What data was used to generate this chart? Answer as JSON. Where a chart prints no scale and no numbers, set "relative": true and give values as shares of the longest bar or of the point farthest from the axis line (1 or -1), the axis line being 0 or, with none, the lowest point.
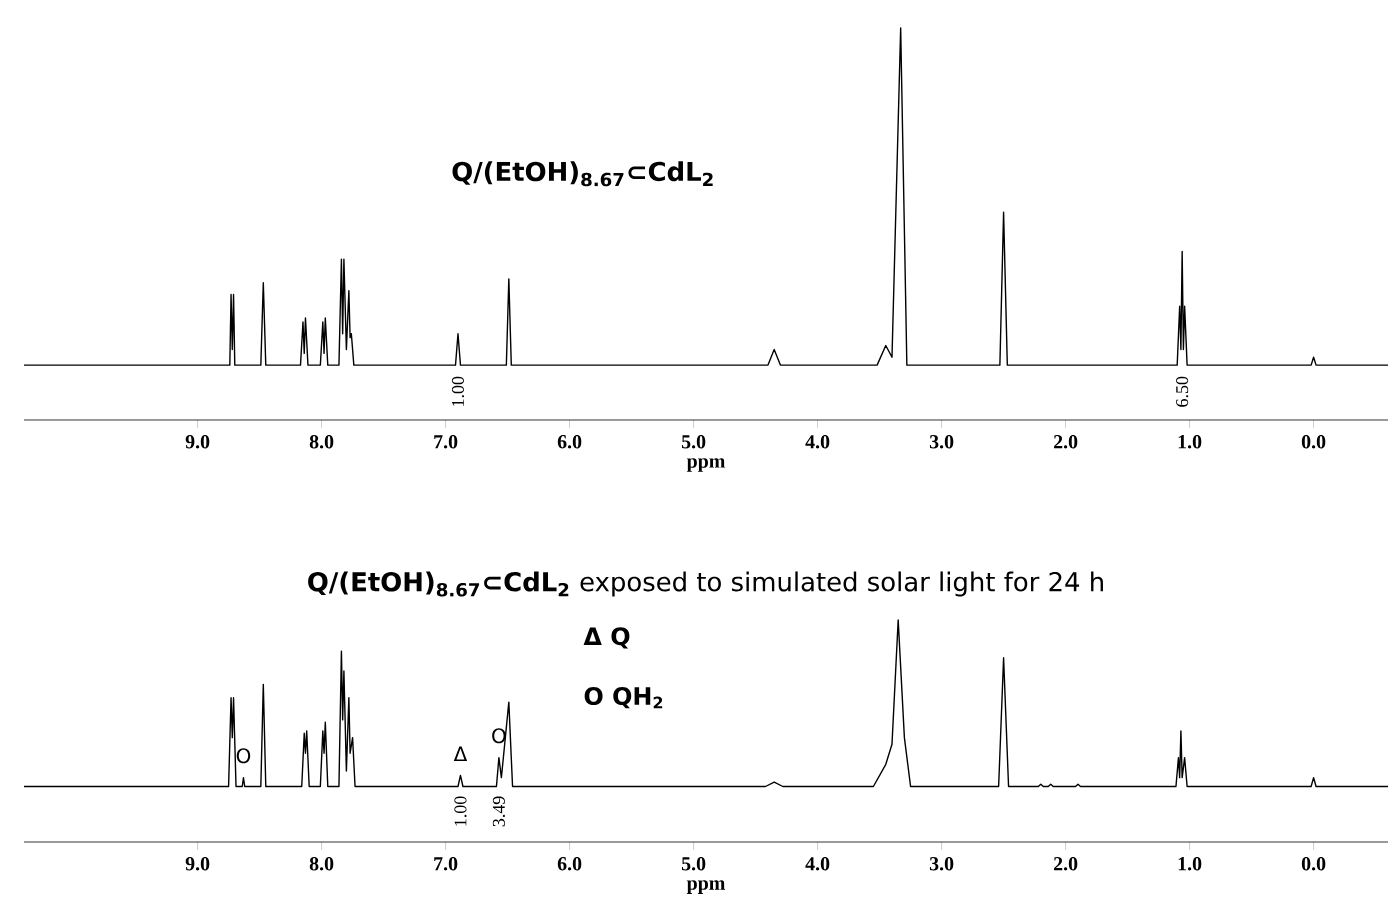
{
  "chart_data": [
    {
      "type": "line",
      "relative": true,
      "title": "Q/(EtOH)$_{8.67}$⊂CdL$_{2}$",
      "xlabel": "ppm",
      "xlim": [
        10.4,
        -0.6
      ],
      "xticks": [
        {
          "value": 9,
          "label": "9.0"
        },
        {
          "value": 8,
          "label": "8.0"
        },
        {
          "value": 7,
          "label": "7.0"
        },
        {
          "value": 6,
          "label": "6.0"
        },
        {
          "value": 5,
          "label": "5.0"
        },
        {
          "value": 4,
          "label": "4.0"
        },
        {
          "value": 3,
          "label": "3.0"
        },
        {
          "value": 2,
          "label": "2.0"
        },
        {
          "value": 1,
          "label": "1.0"
        },
        {
          "value": 0,
          "label": "0.0"
        }
      ],
      "series": [
        {
          "color": "#000000",
          "x": [
            10.4,
            8.74,
            8.73,
            8.72,
            8.71,
            8.7,
            8.49,
            8.47,
            8.45,
            8.17,
            8.15,
            8.14,
            8.13,
            8.11,
            8.01,
            7.99,
            7.98,
            7.97,
            7.95,
            7.86,
            7.84,
            7.83,
            7.82,
            7.8,
            7.78,
            7.77,
            7.76,
            7.74,
            6.92,
            6.9,
            6.88,
            6.51,
            6.49,
            6.47,
            4.4,
            4.35,
            4.3,
            3.52,
            3.45,
            3.4,
            3.33,
            3.28,
            2.53,
            2.5,
            2.47,
            1.1,
            1.08,
            1.07,
            1.06,
            1.05,
            1.04,
            1.02,
            0.02,
            0.0,
            -0.02,
            -0.6
          ],
          "values": [
            0.14,
            0.14,
            0.32,
            0.18,
            0.32,
            0.14,
            0.14,
            0.35,
            0.14,
            0.14,
            0.25,
            0.17,
            0.26,
            0.14,
            0.14,
            0.25,
            0.17,
            0.26,
            0.14,
            0.14,
            0.41,
            0.22,
            0.41,
            0.18,
            0.33,
            0.21,
            0.22,
            0.14,
            0.14,
            0.22,
            0.14,
            0.14,
            0.36,
            0.14,
            0.14,
            0.18,
            0.14,
            0.14,
            0.19,
            0.16,
            1,
            0.14,
            0.14,
            0.53,
            0.14,
            0.14,
            0.29,
            0.18,
            0.43,
            0.18,
            0.29,
            0.14,
            0.14,
            0.16,
            0.14,
            0.14
          ]
        }
      ],
      "annotations": [
        "1.00",
        "6.50"
      ]
    },
    {
      "type": "line",
      "relative": true,
      "title": "**Q/(EtOH)$_{8.67}$⊂CdL$_{2}$** exposed to simulated solar light for 24 h",
      "xlabel": "ppm",
      "xlim": [
        10.4,
        -0.6
      ],
      "xticks": [
        {
          "value": 9,
          "label": "9.0"
        },
        {
          "value": 8,
          "label": "8.0"
        },
        {
          "value": 7,
          "label": "7.0"
        },
        {
          "value": 6,
          "label": "6.0"
        },
        {
          "value": 5,
          "label": "5.0"
        },
        {
          "value": 4,
          "label": "4.0"
        },
        {
          "value": 3,
          "label": "3.0"
        },
        {
          "value": 2,
          "label": "2.0"
        },
        {
          "value": 1,
          "label": "1.0"
        },
        {
          "value": 0,
          "label": "0.0"
        }
      ],
      "series": [
        {
          "color": "#000000",
          "x": [
            10.4,
            8.75,
            8.73,
            8.72,
            8.71,
            8.69,
            8.64,
            8.63,
            8.62,
            8.49,
            8.47,
            8.45,
            8.16,
            8.14,
            8.13,
            8.12,
            8.1,
            8.01,
            7.99,
            7.98,
            7.97,
            7.95,
            7.86,
            7.84,
            7.83,
            7.82,
            7.8,
            7.78,
            7.77,
            7.75,
            7.73,
            6.9,
            6.88,
            6.86,
            6.59,
            6.57,
            6.55,
            6.49,
            6.46,
            4.42,
            4.35,
            4.28,
            3.55,
            3.45,
            3.4,
            3.35,
            3.3,
            3.25,
            2.54,
            2.5,
            2.46,
            2.22,
            2.2,
            2.18,
            2.14,
            2.12,
            2.1,
            1.92,
            1.9,
            1.88,
            1.11,
            1.09,
            1.08,
            1.07,
            1.06,
            1.04,
            1.02,
            0.02,
            0.0,
            -0.02,
            -0.6
          ],
          "values": [
            0.25,
            0.25,
            0.65,
            0.47,
            0.65,
            0.25,
            0.25,
            0.29,
            0.25,
            0.25,
            0.71,
            0.25,
            0.25,
            0.49,
            0.4,
            0.5,
            0.25,
            0.25,
            0.5,
            0.4,
            0.54,
            0.25,
            0.25,
            0.86,
            0.55,
            0.77,
            0.32,
            0.65,
            0.4,
            0.47,
            0.25,
            0.25,
            0.3,
            0.25,
            0.25,
            0.38,
            0.29,
            0.63,
            0.25,
            0.25,
            0.27,
            0.25,
            0.25,
            0.35,
            0.44,
            1,
            0.47,
            0.25,
            0.25,
            0.83,
            0.25,
            0.25,
            0.26,
            0.25,
            0.25,
            0.26,
            0.25,
            0.25,
            0.26,
            0.25,
            0.25,
            0.38,
            0.29,
            0.5,
            0.29,
            0.38,
            0.25,
            0.25,
            0.29,
            0.25,
            0.25
          ]
        }
      ],
      "annotations": [
        "1.00",
        "3.49",
        {
          "text": "Δ",
          "x": 6.88,
          "y": 0.3
        },
        {
          "text": "O",
          "x": 8.63,
          "y": 0.29
        },
        {
          "text": "O",
          "x": 6.57,
          "y": 0.38
        },
        "Δ Q",
        "O QH$_{2}$"
      ]
    }
  ]
}
